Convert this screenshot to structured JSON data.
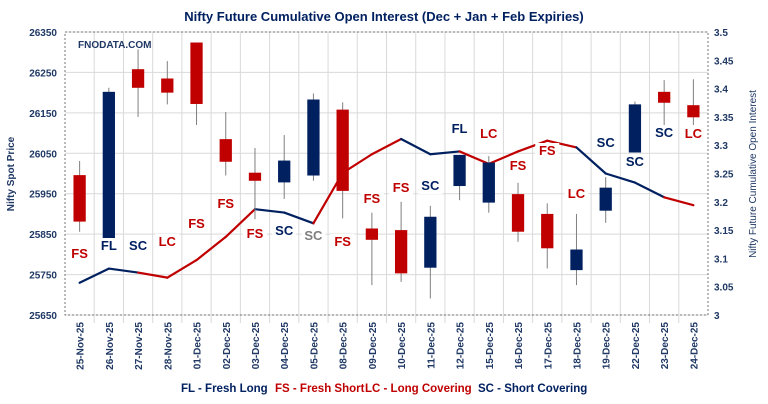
{
  "chart_data": {
    "type": "candlestick+line",
    "title": "Nifty Future Cumulative Open Interest (Dec + Jan  + Feb Expiries)",
    "watermark": "FNODATA.COM",
    "ylabel_left": "Nifty Spot Price",
    "ylabel_right": "Nifty Future Cumulative Open Interest",
    "ylim_left": [
      25650,
      26350
    ],
    "yticks_left": [
      "26350",
      "26250",
      "26150",
      "26050",
      "25950",
      "25850",
      "25750",
      "25650"
    ],
    "ylim_right": [
      3,
      3.5
    ],
    "yticks_right": [
      "3.5",
      "3.45",
      "3.4",
      "3.35",
      "3.3",
      "3.25",
      "3.2",
      "3.15",
      "3.1",
      "3.05",
      "3"
    ],
    "grid": true,
    "categories": [
      "25-Nov-25",
      "26-Nov-25",
      "27-Nov-25",
      "28-Nov-25",
      "01-Dec-25",
      "02-Dec-25",
      "03-Dec-25",
      "04-Dec-25",
      "05-Dec-25",
      "08-Dec-25",
      "09-Dec-25",
      "10-Dec-25",
      "11-Dec-25",
      "12-Dec-25",
      "15-Dec-25",
      "16-Dec-25",
      "17-Dec-25",
      "18-Dec-25",
      "19-Dec-25",
      "22-Dec-25",
      "23-Dec-25",
      "24-Dec-25"
    ],
    "candles": [
      {
        "open": 25996,
        "high": 26031,
        "low": 25856,
        "close": 25881
      },
      {
        "open": 25840,
        "high": 26212,
        "low": 25840,
        "close": 26202
      },
      {
        "open": 26258,
        "high": 26307,
        "low": 26140,
        "close": 26212
      },
      {
        "open": 26235,
        "high": 26278,
        "low": 26171,
        "close": 26200
      },
      {
        "open": 26324,
        "high": 26324,
        "low": 26120,
        "close": 26172
      },
      {
        "open": 26085,
        "high": 26152,
        "low": 25995,
        "close": 26029
      },
      {
        "open": 26002,
        "high": 26063,
        "low": 25887,
        "close": 25982
      },
      {
        "open": 25978,
        "high": 26095,
        "low": 25937,
        "close": 26032
      },
      {
        "open": 25995,
        "high": 26198,
        "low": 25982,
        "close": 26183
      },
      {
        "open": 26158,
        "high": 26176,
        "low": 25889,
        "close": 25957
      },
      {
        "open": 25864,
        "high": 25903,
        "low": 25724,
        "close": 25836
      },
      {
        "open": 25860,
        "high": 25930,
        "low": 25732,
        "close": 25753
      },
      {
        "open": 25767,
        "high": 25920,
        "low": 25691,
        "close": 25893
      },
      {
        "open": 25969,
        "high": 26046,
        "low": 25934,
        "close": 26046
      },
      {
        "open": 25928,
        "high": 26043,
        "low": 25903,
        "close": 26027
      },
      {
        "open": 25949,
        "high": 25977,
        "low": 25831,
        "close": 25856
      },
      {
        "open": 25900,
        "high": 25926,
        "low": 25765,
        "close": 25815
      },
      {
        "open": 25761,
        "high": 25900,
        "low": 25724,
        "close": 25812
      },
      {
        "open": 25908,
        "high": 25991,
        "low": 25878,
        "close": 25965
      },
      {
        "open": 26052,
        "high": 26178,
        "low": 26052,
        "close": 26171
      },
      {
        "open": 26202,
        "high": 26231,
        "low": 26103,
        "close": 26175
      },
      {
        "open": 26169,
        "high": 26233,
        "low": 26120,
        "close": 26139
      }
    ],
    "open_interest": [
      3.057,
      3.082,
      3.075,
      3.066,
      3.097,
      3.138,
      3.187,
      3.181,
      3.162,
      3.251,
      3.284,
      3.311,
      3.284,
      3.289,
      3.267,
      3.289,
      3.308,
      3.296,
      3.25,
      3.234,
      3.208,
      3.194
    ],
    "oi_segment_colors": [
      "#002060",
      "#002060",
      "#c00000",
      "#c00000",
      "#c00000",
      "#c00000",
      "#002060",
      "#002060",
      "#c00000",
      "#c00000",
      "#c00000",
      "#002060",
      "#002060",
      "#c00000",
      "#c00000",
      "#c00000",
      "#c00000",
      "#002060",
      "#002060",
      "#002060",
      "#c00000"
    ],
    "annotations": [
      "FS",
      "FL",
      "SC",
      "LC",
      "FS",
      "FS",
      "FS",
      "SC",
      "SC",
      "FS",
      "FS",
      "FS",
      "SC",
      "FL",
      "LC",
      "FS",
      "FS",
      "LC",
      "SC",
      "SC",
      "SC",
      "LC"
    ],
    "annotation_colors": [
      "#c00000",
      "#002060",
      "#002060",
      "#c00000",
      "#c00000",
      "#c00000",
      "#c00000",
      "#002060",
      "#7f7f7f",
      "#c00000",
      "#c00000",
      "#c00000",
      "#002060",
      "#002060",
      "#c00000",
      "#c00000",
      "#c00000",
      "#c00000",
      "#002060",
      "#002060",
      "#002060",
      "#c00000"
    ],
    "colors": {
      "bull": "#002060",
      "bear": "#c00000",
      "axis_text": "#1f3864"
    },
    "legend": [
      {
        "text": "FL - Fresh Long",
        "color": "#002060"
      },
      {
        "text": "FS - Fresh Short",
        "color": "#c00000"
      },
      {
        "text": "LC - Long Covering",
        "color": "#c00000"
      },
      {
        "text": "SC - Short Covering",
        "color": "#002060"
      }
    ],
    "legend_position": "bottom"
  }
}
